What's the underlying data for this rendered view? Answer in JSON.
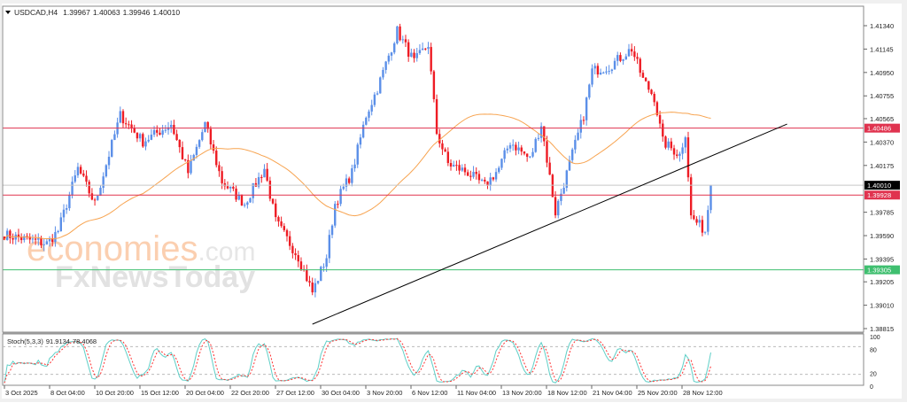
{
  "header": {
    "symbol": "USDCAD,H4",
    "open": "1.39967",
    "high": "1.40063",
    "low": "1.39946",
    "close": "1.40010"
  },
  "watermark": {
    "line1a": "economies",
    "line1b": ".com",
    "line2": "FxNewsToday"
  },
  "colors": {
    "bull": "#5b8fe8",
    "bear": "#ee1c24",
    "ma": "#f7a34f",
    "stoch_main": "#5fcfc7",
    "stoch_signal": "#ff3030",
    "level_red": "#e0334f",
    "level_green": "#3fbf6f",
    "current": "#000000"
  },
  "chart_data": {
    "type": "candlestick",
    "timeframe": "H4",
    "ylim": [
      1.38815,
      1.4134
    ],
    "y_ticks": [
      "1.41340",
      "1.41145",
      "1.40950",
      "1.40755",
      "1.40565",
      "1.40370",
      "1.40175",
      "1.40010",
      "1.39785",
      "1.39590",
      "1.39395",
      "1.39205",
      "1.39010",
      "1.38815"
    ],
    "x_ticks": [
      "3 Oct 2025",
      "8 Oct 04:00",
      "10 Oct 20:00",
      "15 Oct 12:00",
      "20 Oct 04:00",
      "22 Oct 20:00",
      "27 Oct 12:00",
      "30 Oct 04:00",
      "3 Nov 20:00",
      "6 Nov 12:00",
      "11 Nov 04:00",
      "13 Nov 20:00",
      "18 Nov 12:00",
      "21 Nov 04:00",
      "25 Nov 20:00",
      "28 Nov 12:00"
    ],
    "close_path": [
      [
        0,
        1.39598
      ],
      [
        15,
        1.39524
      ],
      [
        19,
        1.3963
      ],
      [
        26,
        1.4015
      ],
      [
        32,
        1.39856
      ],
      [
        41,
        1.40594
      ],
      [
        49,
        1.40373
      ],
      [
        59,
        1.4052
      ],
      [
        65,
        1.40115
      ],
      [
        71,
        1.4052
      ],
      [
        77,
        1.4004
      ],
      [
        85,
        1.39856
      ],
      [
        92,
        1.4015
      ],
      [
        96,
        1.3971
      ],
      [
        104,
        1.39413
      ],
      [
        109,
        1.39118
      ],
      [
        114,
        1.39413
      ],
      [
        117,
        1.39856
      ],
      [
        123,
        1.40115
      ],
      [
        128,
        1.40594
      ],
      [
        132,
        1.40816
      ],
      [
        139,
        1.41296
      ],
      [
        145,
        1.41037
      ],
      [
        150,
        1.41185
      ],
      [
        153,
        1.40447
      ],
      [
        157,
        1.4019
      ],
      [
        164,
        1.40115
      ],
      [
        170,
        1.40004
      ],
      [
        175,
        1.4015
      ],
      [
        179,
        1.40373
      ],
      [
        186,
        1.40226
      ],
      [
        190,
        1.4052
      ],
      [
        195,
        1.39783
      ],
      [
        200,
        1.4019
      ],
      [
        205,
        1.40594
      ],
      [
        208,
        1.40963
      ],
      [
        214,
        1.41
      ],
      [
        222,
        1.41148
      ],
      [
        226,
        1.4089
      ],
      [
        230,
        1.40742
      ],
      [
        233,
        1.40373
      ],
      [
        239,
        1.40263
      ],
      [
        241,
        1.40447
      ],
      [
        243,
        1.39746
      ],
      [
        248,
        1.3963
      ],
      [
        250,
        1.4001
      ]
    ],
    "levels": [
      {
        "price": "1.40486",
        "type": "resistance"
      },
      {
        "price": "1.39928",
        "type": "resistance"
      },
      {
        "price": "1.39305",
        "type": "support"
      },
      {
        "price": "1.40010",
        "type": "current"
      }
    ],
    "trendline": {
      "from": [
        109,
        1.38852
      ],
      "to": [
        277,
        1.4052
      ]
    },
    "moving_average": {
      "visible": true
    },
    "indicator": {
      "name": "Stoch(5,3,3)",
      "main": "91.9134",
      "signal": "78.4068",
      "levels": [
        "100",
        "80",
        "20",
        "0"
      ]
    }
  }
}
